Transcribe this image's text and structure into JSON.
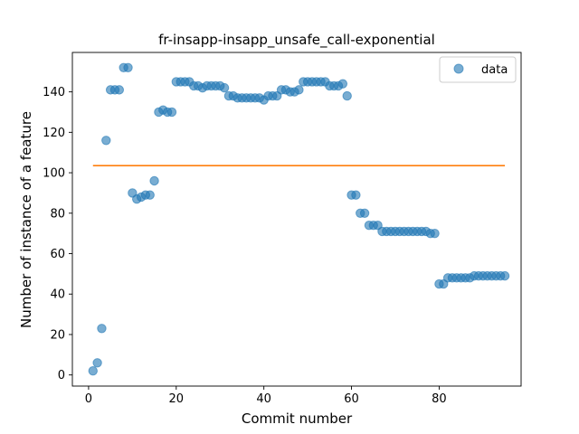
{
  "chart_data": {
    "type": "scatter",
    "title": "fr-insapp-insapp_unsafe_call-exponential",
    "xlabel": "Commit number",
    "ylabel": "Number of instance of a feature",
    "xlim": [
      -3.7,
      98.7
    ],
    "ylim": [
      -5.5,
      159.5
    ],
    "xticks": [
      0,
      20,
      40,
      60,
      80
    ],
    "yticks": [
      0,
      20,
      40,
      60,
      80,
      100,
      120,
      140
    ],
    "grid": false,
    "legend": {
      "position": "top-right",
      "entries": [
        "data"
      ]
    },
    "colors": {
      "points": "#1f77b4",
      "line": "#ff7f0e"
    },
    "series": [
      {
        "name": "data",
        "kind": "scatter",
        "x": [
          1,
          2,
          3,
          4,
          5,
          6,
          7,
          8,
          9,
          10,
          11,
          12,
          13,
          14,
          15,
          16,
          17,
          18,
          19,
          20,
          21,
          22,
          23,
          24,
          25,
          26,
          27,
          28,
          29,
          30,
          31,
          32,
          33,
          34,
          35,
          36,
          37,
          38,
          39,
          40,
          41,
          42,
          43,
          44,
          45,
          46,
          47,
          48,
          49,
          50,
          51,
          52,
          53,
          54,
          55,
          56,
          57,
          58,
          59,
          60,
          61,
          62,
          63,
          64,
          65,
          66,
          67,
          68,
          69,
          70,
          71,
          72,
          73,
          74,
          75,
          76,
          77,
          78,
          79,
          80,
          81,
          82,
          83,
          84,
          85,
          86,
          87,
          88,
          89,
          90,
          91,
          92,
          93,
          94,
          95
        ],
        "y": [
          2,
          6,
          23,
          116,
          141,
          141,
          141,
          152,
          152,
          90,
          87,
          88,
          89,
          89,
          96,
          130,
          131,
          130,
          130,
          145,
          145,
          145,
          145,
          143,
          143,
          142,
          143,
          143,
          143,
          143,
          142,
          138,
          138,
          137,
          137,
          137,
          137,
          137,
          137,
          136,
          138,
          138,
          138,
          141,
          141,
          140,
          140,
          141,
          145,
          145,
          145,
          145,
          145,
          145,
          143,
          143,
          143,
          144,
          138,
          89,
          89,
          80,
          80,
          74,
          74,
          74,
          71,
          71,
          71,
          71,
          71,
          71,
          71,
          71,
          71,
          71,
          71,
          70,
          70,
          45,
          45,
          48,
          48,
          48,
          48,
          48,
          48,
          49,
          49,
          49,
          49,
          49,
          49,
          49,
          49
        ]
      },
      {
        "name": "",
        "kind": "line",
        "x": [
          1,
          95
        ],
        "y": [
          103.5,
          103.5
        ]
      }
    ]
  }
}
